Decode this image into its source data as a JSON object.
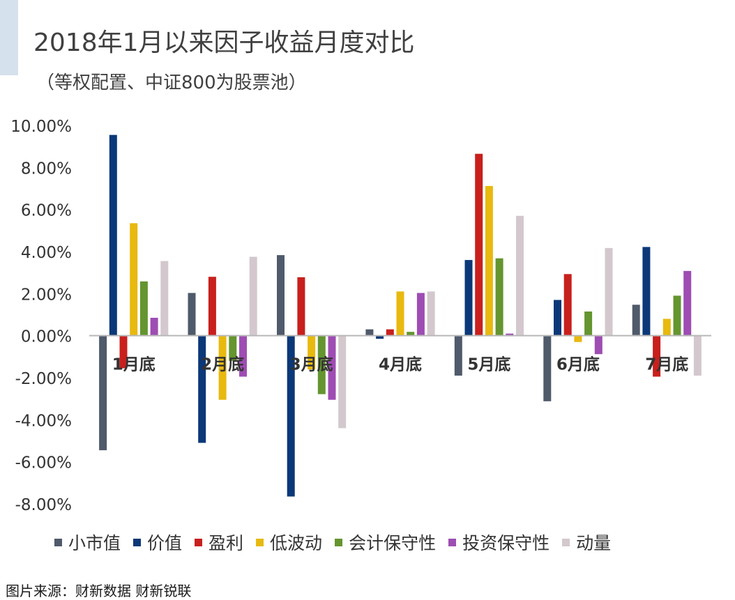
{
  "header": {
    "title": "2018年1月以来因子收益月度对比",
    "subtitle": "（等权配置、中证800为股票池）"
  },
  "source": "图片来源：财新数据 财新锐联",
  "chart_data": {
    "type": "bar",
    "categories": [
      "1月底",
      "2月底",
      "3月底",
      "4月底",
      "5月底",
      "6月底",
      "7月底"
    ],
    "series": [
      {
        "name": "小市值",
        "color": "#4f5a6b",
        "values": [
          -5.45,
          2.03,
          3.83,
          0.3,
          -1.9,
          -3.12,
          1.47
        ]
      },
      {
        "name": "价值",
        "color": "#0b3878",
        "values": [
          9.55,
          -5.1,
          -7.65,
          -0.15,
          3.6,
          1.7,
          4.22
        ]
      },
      {
        "name": "盈利",
        "color": "#c8201d",
        "values": [
          -1.55,
          2.8,
          2.78,
          0.3,
          8.65,
          2.93,
          -1.95
        ]
      },
      {
        "name": "低波动",
        "color": "#e8b90f",
        "values": [
          5.35,
          -3.05,
          -1.6,
          2.1,
          7.12,
          -0.3,
          0.8
        ]
      },
      {
        "name": "会计保守性",
        "color": "#64952f",
        "values": [
          2.58,
          -1.2,
          -2.78,
          0.18,
          3.68,
          1.15,
          1.9
        ]
      },
      {
        "name": "投资保守性",
        "color": "#9e4db3",
        "values": [
          0.85,
          -1.95,
          -3.05,
          2.03,
          0.1,
          -0.88,
          3.08
        ]
      },
      {
        "name": "动量",
        "color": "#d3c8cd",
        "values": [
          3.55,
          3.75,
          -4.4,
          2.1,
          5.7,
          4.17,
          -1.9
        ]
      }
    ],
    "ylim": [
      -8,
      10
    ],
    "yticks": [
      "10.00%",
      "8.00%",
      "6.00%",
      "4.00%",
      "2.00%",
      "0.00%",
      "-2.00%",
      "-4.00%",
      "-6.00%",
      "-8.00%"
    ],
    "ytick_values": [
      10,
      8,
      6,
      4,
      2,
      0,
      -2,
      -4,
      -6,
      -8
    ],
    "legend_position": "bottom",
    "grid": false
  }
}
